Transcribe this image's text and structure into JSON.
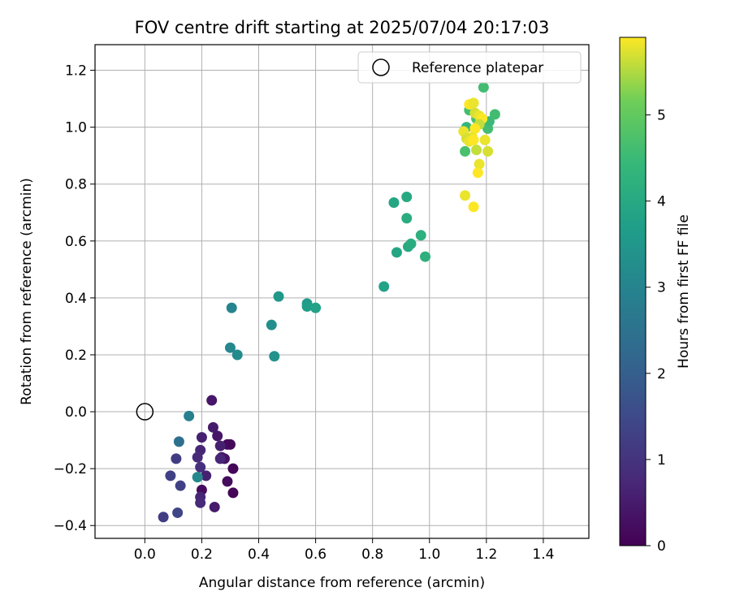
{
  "chart_data": {
    "type": "scatter",
    "title": "FOV centre drift starting at 2025/07/04 20:17:03",
    "xlabel": "Angular distance from reference (arcmin)",
    "ylabel": "Rotation from reference (arcmin)",
    "xlim": [
      -0.175,
      1.56
    ],
    "ylim": [
      -0.445,
      1.29
    ],
    "xticks": [
      0.0,
      0.2,
      0.4,
      0.6,
      0.8,
      1.0,
      1.2,
      1.4
    ],
    "xtick_labels": [
      "0.0",
      "0.2",
      "0.4",
      "0.6",
      "0.8",
      "1.0",
      "1.2",
      "1.4"
    ],
    "yticks": [
      -0.4,
      -0.2,
      0.0,
      0.2,
      0.4,
      0.6,
      0.8,
      1.0,
      1.2
    ],
    "ytick_labels": [
      "−0.4",
      "−0.2",
      "0.0",
      "0.2",
      "0.4",
      "0.6",
      "0.8",
      "1.0",
      "1.2"
    ],
    "grid": true,
    "legend": {
      "position": "top-right",
      "label": "Reference platepar"
    },
    "reference_point": {
      "x": 0.0,
      "y": 0.0
    },
    "colorbar": {
      "label": "Hours from first FF file",
      "range": [
        0,
        5.9
      ],
      "colormap": "viridis",
      "ticks": [
        0,
        1,
        2,
        3,
        4,
        5
      ],
      "tick_labels": [
        "0",
        "1",
        "2",
        "3",
        "4",
        "5"
      ]
    },
    "points": [
      {
        "x": 0.29,
        "y": -0.115,
        "h": 0.1
      },
      {
        "x": 0.3,
        "y": -0.115,
        "h": 0.15
      },
      {
        "x": 0.31,
        "y": -0.2,
        "h": 0.1
      },
      {
        "x": 0.31,
        "y": -0.285,
        "h": 0.1
      },
      {
        "x": 0.29,
        "y": -0.245,
        "h": 0.2
      },
      {
        "x": 0.2,
        "y": -0.275,
        "h": 0.2
      },
      {
        "x": 0.235,
        "y": 0.04,
        "h": 0.4
      },
      {
        "x": 0.24,
        "y": -0.055,
        "h": 0.5
      },
      {
        "x": 0.255,
        "y": -0.085,
        "h": 0.4
      },
      {
        "x": 0.265,
        "y": -0.12,
        "h": 0.6
      },
      {
        "x": 0.27,
        "y": -0.16,
        "h": 0.5
      },
      {
        "x": 0.28,
        "y": -0.165,
        "h": 0.3
      },
      {
        "x": 0.265,
        "y": -0.165,
        "h": 0.7
      },
      {
        "x": 0.2,
        "y": -0.09,
        "h": 0.6
      },
      {
        "x": 0.195,
        "y": -0.135,
        "h": 0.7
      },
      {
        "x": 0.185,
        "y": -0.16,
        "h": 0.8
      },
      {
        "x": 0.195,
        "y": -0.195,
        "h": 0.9
      },
      {
        "x": 0.215,
        "y": -0.225,
        "h": 0.6
      },
      {
        "x": 0.195,
        "y": -0.3,
        "h": 0.7
      },
      {
        "x": 0.195,
        "y": -0.32,
        "h": 0.8
      },
      {
        "x": 0.245,
        "y": -0.335,
        "h": 0.5
      },
      {
        "x": 0.11,
        "y": -0.165,
        "h": 1.2
      },
      {
        "x": 0.09,
        "y": -0.225,
        "h": 1.3
      },
      {
        "x": 0.125,
        "y": -0.26,
        "h": 1.3
      },
      {
        "x": 0.115,
        "y": -0.355,
        "h": 1.4
      },
      {
        "x": 0.065,
        "y": -0.37,
        "h": 1.2
      },
      {
        "x": 0.12,
        "y": -0.105,
        "h": 2.4
      },
      {
        "x": 0.155,
        "y": -0.015,
        "h": 2.9
      },
      {
        "x": 0.185,
        "y": -0.23,
        "h": 3.1
      },
      {
        "x": 0.305,
        "y": 0.365,
        "h": 3.0
      },
      {
        "x": 0.3,
        "y": 0.225,
        "h": 3.1
      },
      {
        "x": 0.325,
        "y": 0.2,
        "h": 3.2
      },
      {
        "x": 0.445,
        "y": 0.305,
        "h": 3.3
      },
      {
        "x": 0.455,
        "y": 0.195,
        "h": 3.4
      },
      {
        "x": 0.47,
        "y": 0.405,
        "h": 3.5
      },
      {
        "x": 0.57,
        "y": 0.38,
        "h": 3.6
      },
      {
        "x": 0.57,
        "y": 0.37,
        "h": 3.7
      },
      {
        "x": 0.6,
        "y": 0.365,
        "h": 3.8
      },
      {
        "x": 0.84,
        "y": 0.44,
        "h": 3.8
      },
      {
        "x": 0.875,
        "y": 0.735,
        "h": 3.9
      },
      {
        "x": 0.92,
        "y": 0.755,
        "h": 4.0
      },
      {
        "x": 0.885,
        "y": 0.56,
        "h": 3.9
      },
      {
        "x": 0.92,
        "y": 0.68,
        "h": 4.1
      },
      {
        "x": 0.925,
        "y": 0.58,
        "h": 4.0
      },
      {
        "x": 0.935,
        "y": 0.59,
        "h": 4.1
      },
      {
        "x": 0.97,
        "y": 0.62,
        "h": 4.2
      },
      {
        "x": 0.985,
        "y": 0.545,
        "h": 4.2
      },
      {
        "x": 1.19,
        "y": 1.14,
        "h": 4.6
      },
      {
        "x": 1.13,
        "y": 1.0,
        "h": 4.4
      },
      {
        "x": 1.14,
        "y": 1.06,
        "h": 4.6
      },
      {
        "x": 1.165,
        "y": 1.03,
        "h": 4.7
      },
      {
        "x": 1.205,
        "y": 0.995,
        "h": 4.6
      },
      {
        "x": 1.21,
        "y": 1.02,
        "h": 4.5
      },
      {
        "x": 1.23,
        "y": 1.045,
        "h": 4.6
      },
      {
        "x": 1.125,
        "y": 0.915,
        "h": 4.7
      },
      {
        "x": 1.12,
        "y": 0.985,
        "h": 5.8
      },
      {
        "x": 1.14,
        "y": 1.08,
        "h": 5.9
      },
      {
        "x": 1.155,
        "y": 1.085,
        "h": 5.8
      },
      {
        "x": 1.16,
        "y": 1.05,
        "h": 5.7
      },
      {
        "x": 1.175,
        "y": 1.04,
        "h": 5.8
      },
      {
        "x": 1.185,
        "y": 1.03,
        "h": 5.9
      },
      {
        "x": 1.175,
        "y": 1.01,
        "h": 5.6
      },
      {
        "x": 1.16,
        "y": 0.995,
        "h": 5.9
      },
      {
        "x": 1.15,
        "y": 0.965,
        "h": 5.8
      },
      {
        "x": 1.13,
        "y": 0.96,
        "h": 5.7
      },
      {
        "x": 1.14,
        "y": 0.95,
        "h": 5.8
      },
      {
        "x": 1.155,
        "y": 0.955,
        "h": 5.9
      },
      {
        "x": 1.165,
        "y": 0.92,
        "h": 5.6
      },
      {
        "x": 1.195,
        "y": 0.955,
        "h": 5.8
      },
      {
        "x": 1.205,
        "y": 0.915,
        "h": 5.7
      },
      {
        "x": 1.175,
        "y": 0.87,
        "h": 5.8
      },
      {
        "x": 1.17,
        "y": 0.84,
        "h": 5.9
      },
      {
        "x": 1.125,
        "y": 0.76,
        "h": 5.8
      },
      {
        "x": 1.155,
        "y": 0.72,
        "h": 5.9
      }
    ]
  }
}
